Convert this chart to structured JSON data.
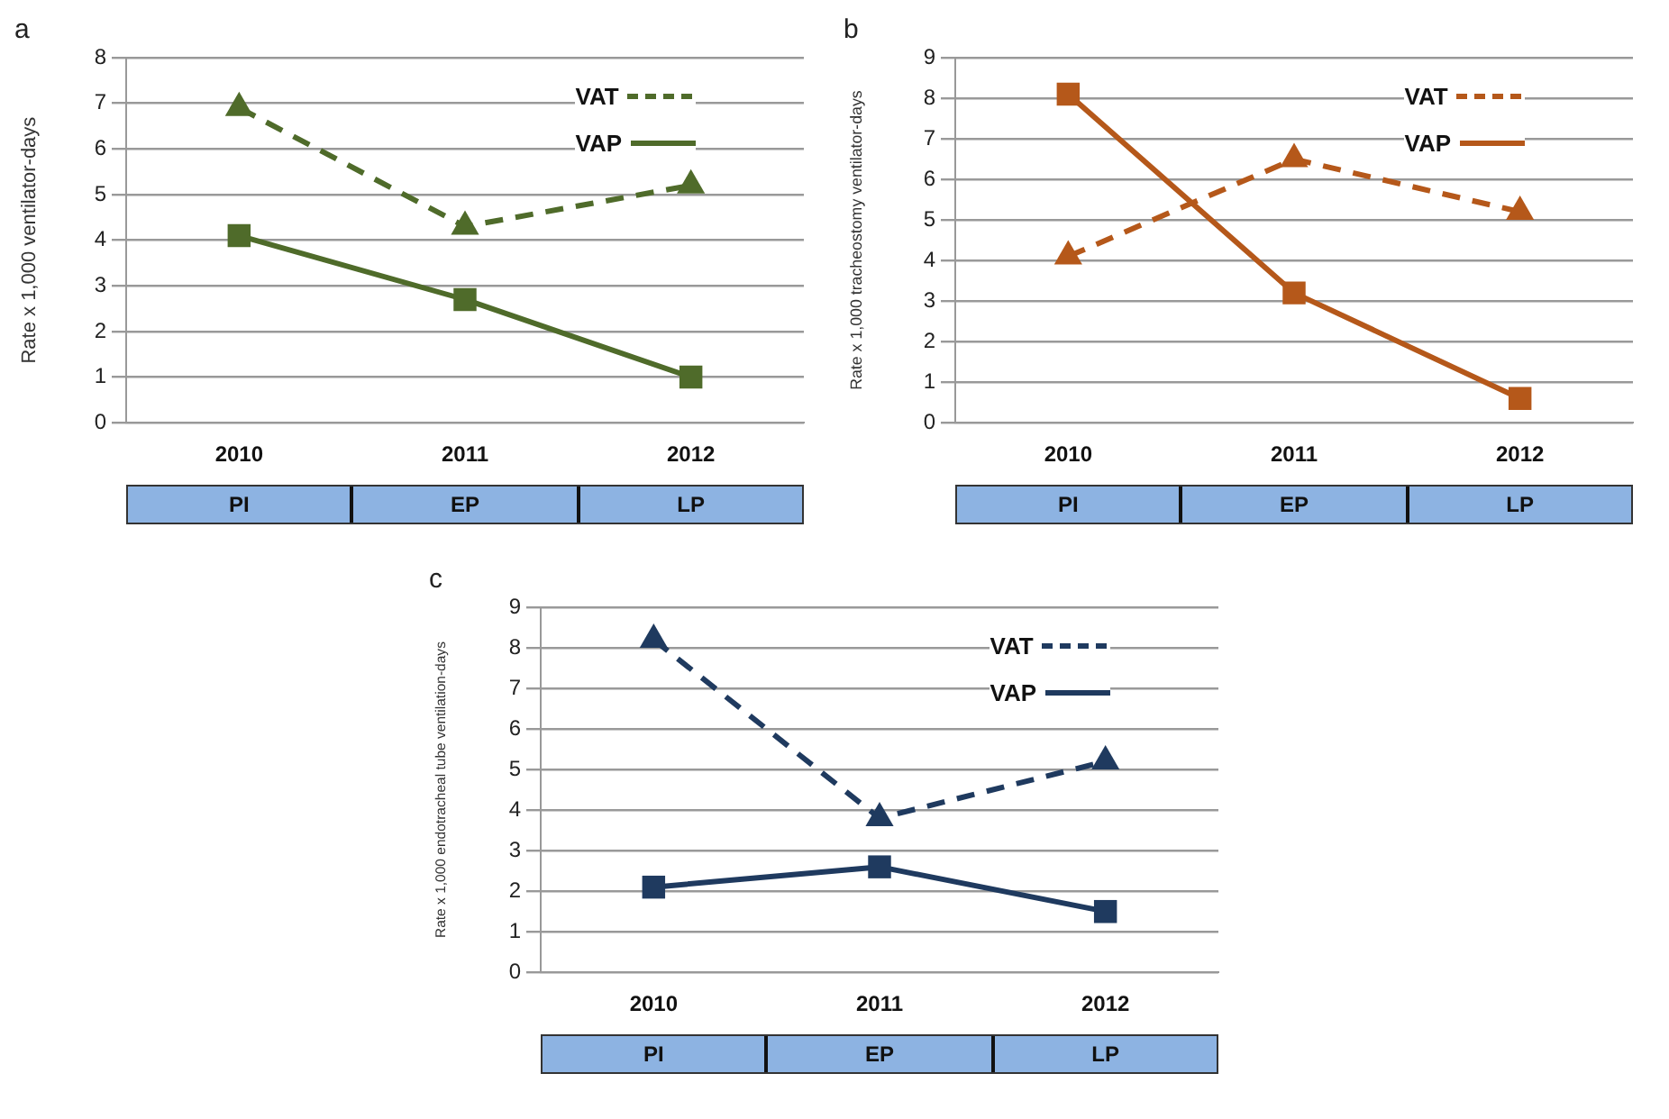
{
  "chart_data": [
    {
      "type": "line",
      "title": "a",
      "ylabel": "Rate x 1,000 ventilator-days",
      "categories": [
        "2010",
        "2011",
        "2012"
      ],
      "ylim": [
        0,
        8
      ],
      "yticks": [
        0,
        1,
        2,
        3,
        4,
        5,
        6,
        7,
        8
      ],
      "grid": "y",
      "legend": "top right",
      "annotations": [
        "PI",
        "EP",
        "LP"
      ],
      "series": [
        {
          "name": "VAT",
          "color": "#4f6b2a",
          "values": [
            6.9,
            4.3,
            5.2
          ],
          "marker": "triangle",
          "line_style": "dashed"
        },
        {
          "name": "VAP",
          "color": "#4f6b2a",
          "values": [
            4.1,
            2.7,
            1.0
          ],
          "marker": "square",
          "line_style": "solid"
        }
      ]
    },
    {
      "type": "line",
      "title": "b",
      "ylabel": "Rate x 1,000 tracheostomy ventilator-days",
      "categories": [
        "2010",
        "2011",
        "2012"
      ],
      "ylim": [
        0,
        9
      ],
      "yticks": [
        0,
        1,
        2,
        3,
        4,
        5,
        6,
        7,
        8,
        9
      ],
      "grid": "y",
      "legend": "top right",
      "annotations": [
        "PI",
        "EP",
        "LP"
      ],
      "series": [
        {
          "name": "VAT",
          "color": "#b5581a",
          "values": [
            4.1,
            6.5,
            5.2
          ],
          "marker": "triangle",
          "line_style": "dashed"
        },
        {
          "name": "VAP",
          "color": "#b5581a",
          "values": [
            8.1,
            3.2,
            0.6
          ],
          "marker": "square",
          "line_style": "solid"
        }
      ]
    },
    {
      "type": "line",
      "title": "c",
      "ylabel": "Rate x 1,000 endotracheal tube ventilation-days",
      "categories": [
        "2010",
        "2011",
        "2012"
      ],
      "ylim": [
        0,
        9
      ],
      "yticks": [
        0,
        1,
        2,
        3,
        4,
        5,
        6,
        7,
        8,
        9
      ],
      "grid": "y",
      "legend": "top right",
      "annotations": [
        "PI",
        "EP",
        "LP"
      ],
      "series": [
        {
          "name": "VAT",
          "color": "#1f3a5f",
          "values": [
            8.2,
            3.8,
            5.2
          ],
          "marker": "triangle",
          "line_style": "dashed"
        },
        {
          "name": "VAP",
          "color": "#1f3a5f",
          "values": [
            2.1,
            2.6,
            1.5
          ],
          "marker": "square",
          "line_style": "solid"
        }
      ]
    }
  ]
}
